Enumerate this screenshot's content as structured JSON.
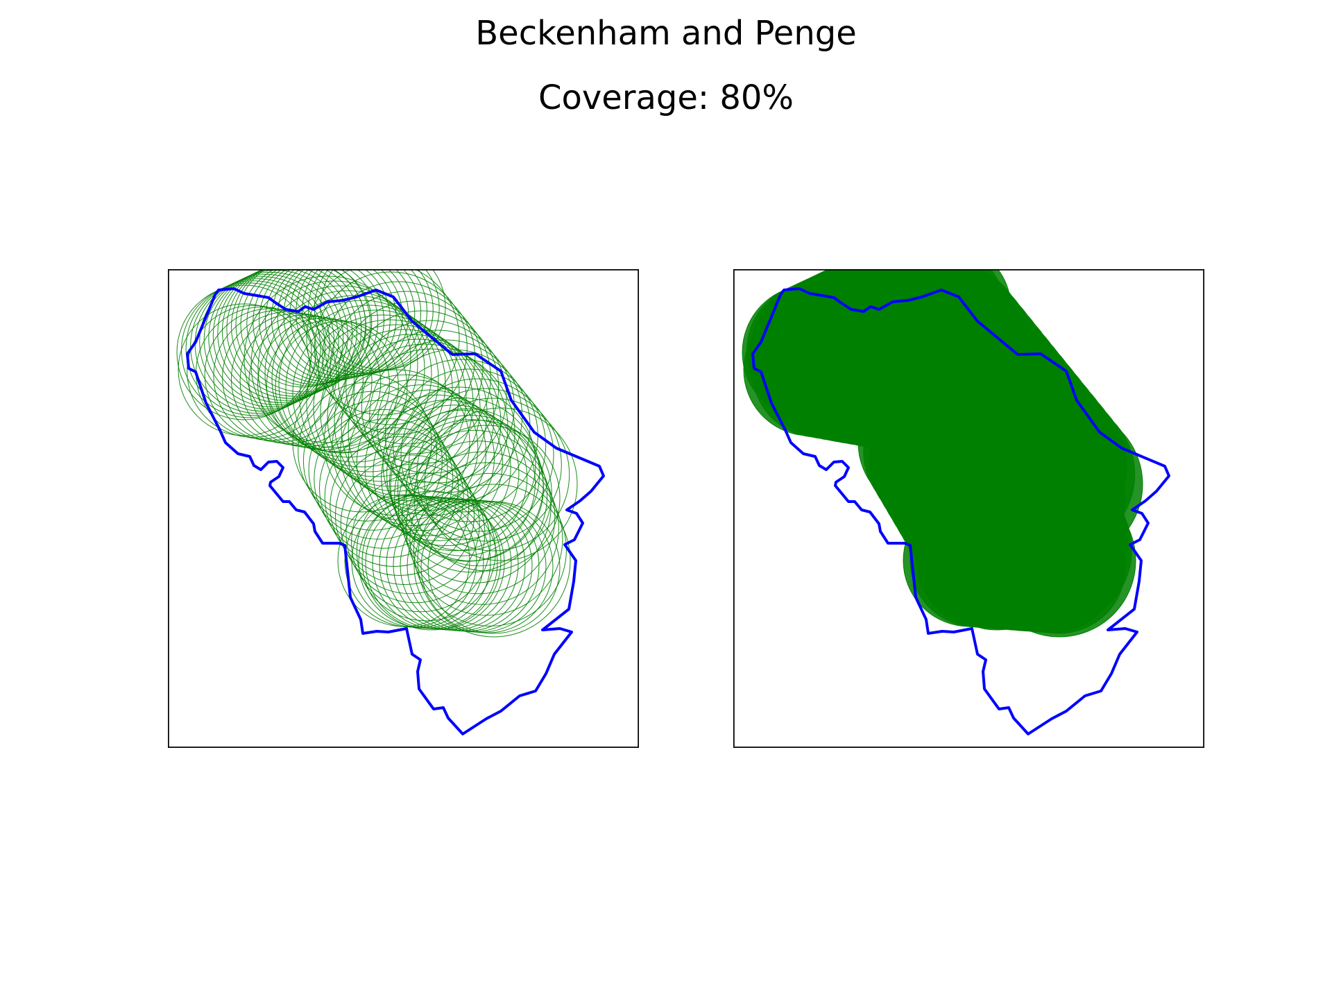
{
  "figure": {
    "title": "Beckenham and Penge",
    "subtitle": "Coverage: 80%"
  },
  "panels": [
    {
      "style": "outline",
      "circle_color": "#008000",
      "boundary_color": "#0000ff"
    },
    {
      "style": "filled",
      "circle_color": "#008000",
      "boundary_color": "#0000ff"
    }
  ],
  "coverage_percent": 80
}
